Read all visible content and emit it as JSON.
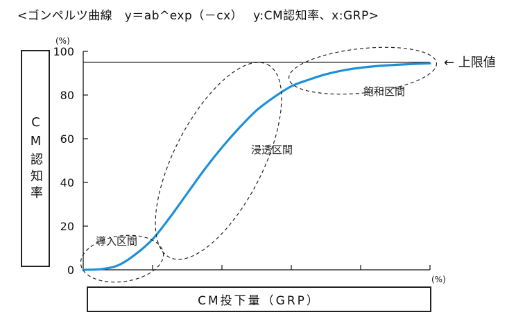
{
  "chart_data": {
    "type": "line",
    "title": "<ゴンペルツ曲線　y＝ab^exp（－cx）　 y:CM認知率、x:GRP>",
    "xlabel": "CM投下量（GRP）",
    "ylabel": "CM認知率",
    "x_unit": "(%)",
    "y_unit": "(%)",
    "ylim": [
      0,
      100
    ],
    "xlim": [
      0,
      100
    ],
    "y_ticks": [
      "0",
      "20",
      "40",
      "60",
      "80",
      "100"
    ],
    "x_tick_count": 5,
    "grid": false,
    "upper_limit": {
      "value": 95,
      "label": "← 上限値"
    },
    "series": [
      {
        "color": "#1e90d8",
        "x": [
          0,
          5,
          10,
          15,
          20,
          25,
          30,
          35,
          40,
          45,
          50,
          55,
          60,
          65,
          70,
          75,
          80,
          85,
          90,
          95,
          100
        ],
        "y": [
          0,
          0.3,
          2,
          7,
          14,
          24,
          35,
          46,
          56,
          65,
          73,
          79,
          84,
          87,
          89.5,
          91.3,
          92.5,
          93.3,
          93.8,
          94.2,
          94.5
        ]
      }
    ],
    "annotations": [
      {
        "text": "導入区間"
      },
      {
        "text": "浸透区間"
      },
      {
        "text": "飽和区間"
      }
    ]
  }
}
